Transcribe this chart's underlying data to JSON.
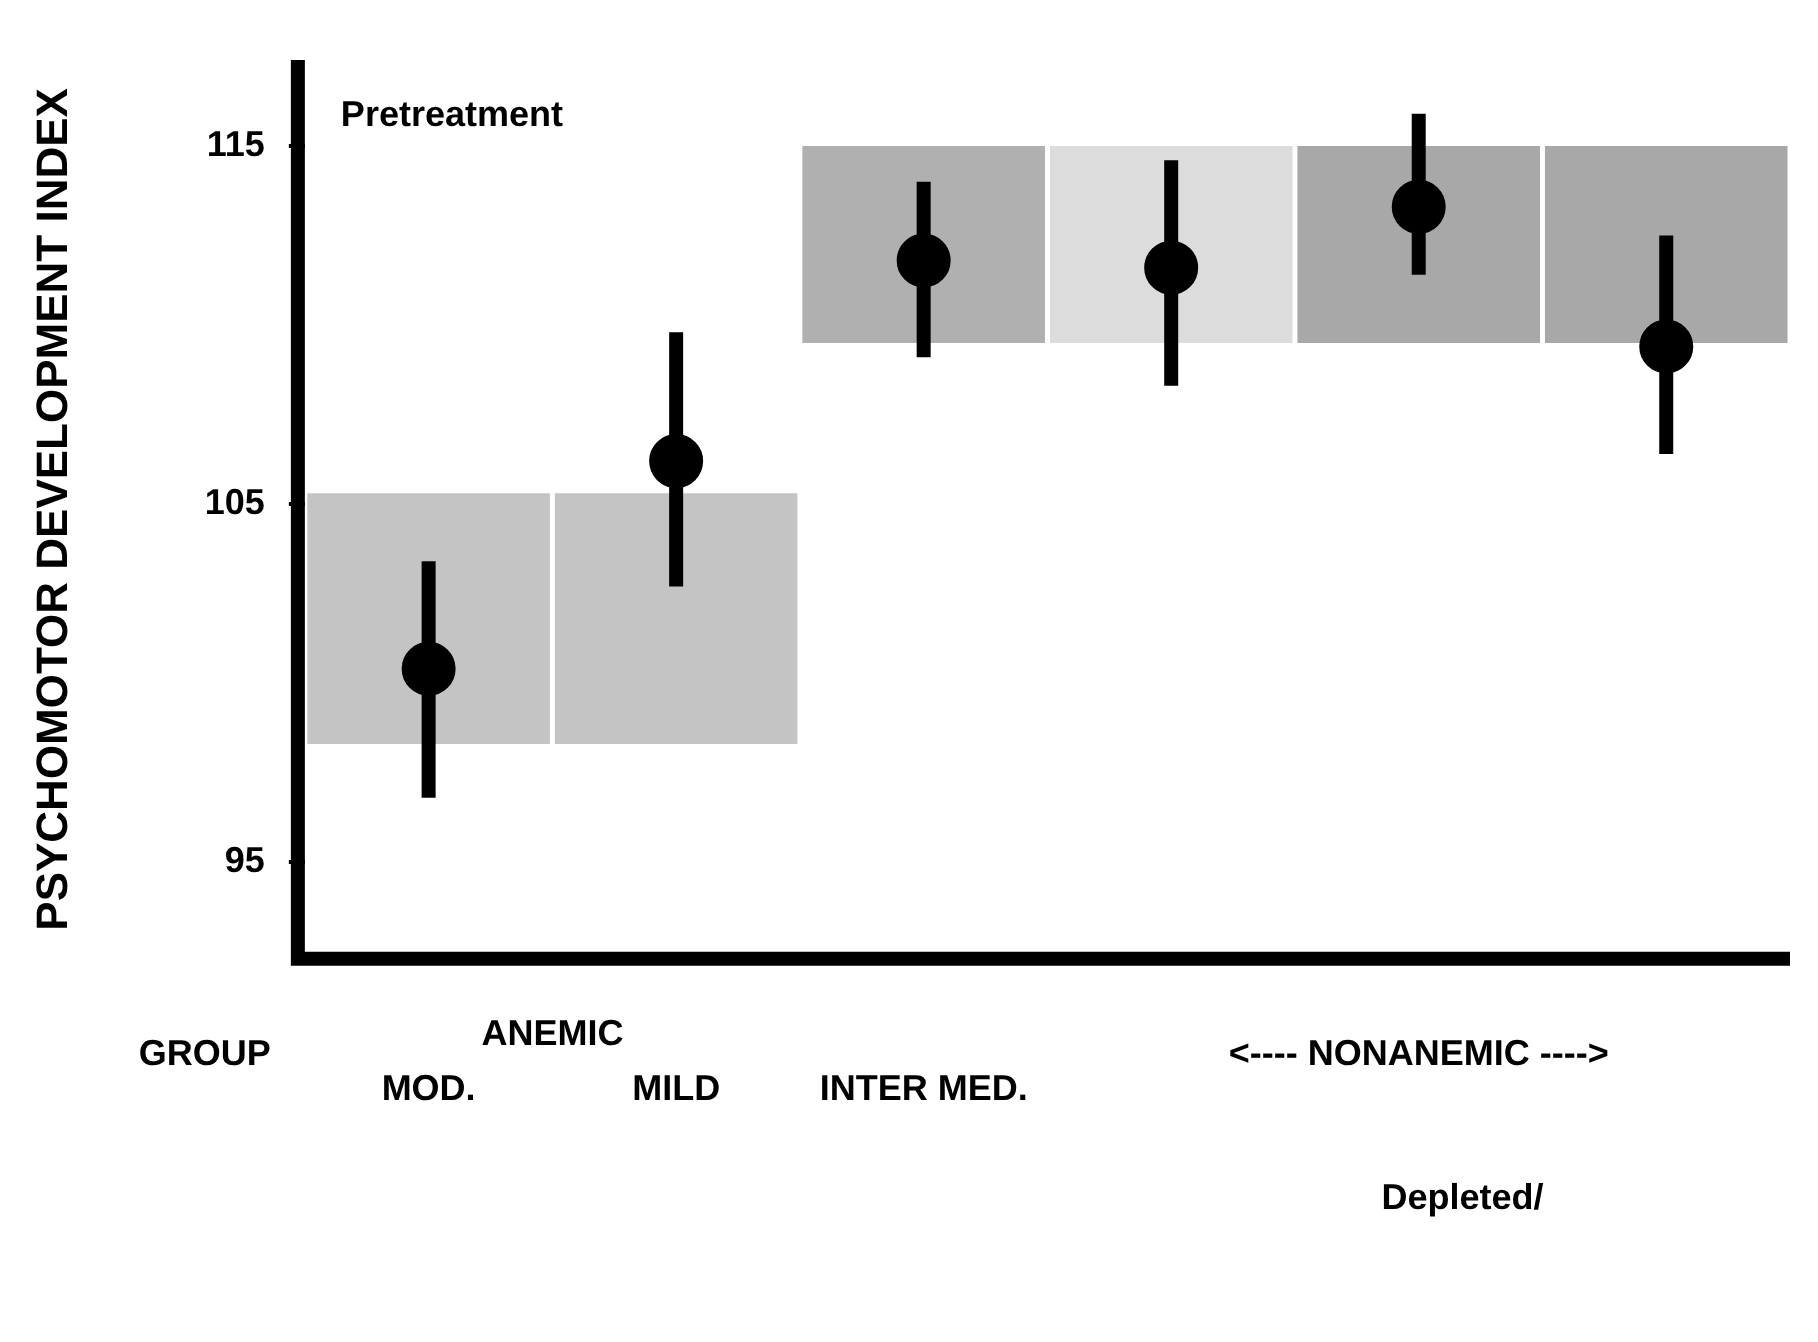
{
  "chart_data": {
    "type": "scatter",
    "ylabel": "PSYCHOMOTOR DEVELOPMENT INDEX",
    "categories": [
      "MOD.",
      "MILD",
      "INTER MED.",
      null,
      null,
      null
    ],
    "series": [
      {
        "type": "bar",
        "colors": [
          "#c4c4c4",
          "#c4c4c4",
          "#b0b0b0",
          "#dcdcdc",
          "#a8a8a8",
          "#a8a8a8"
        ],
        "base": [
          98.3,
          98.3,
          109.5,
          109.5,
          109.5,
          109.5
        ],
        "values": [
          7,
          7,
          5.5,
          5.5,
          5.5,
          5.5
        ]
      },
      {
        "color": "#000000",
        "values": [
          100.4,
          106.2,
          111.8,
          111.6,
          113.3,
          109.4
        ],
        "errors": [
          [
            96.8,
            103.4
          ],
          [
            102.7,
            109.8
          ],
          [
            109.1,
            114.0
          ],
          [
            108.3,
            114.6
          ],
          [
            111.4,
            115.9
          ],
          [
            106.4,
            112.5
          ]
        ]
      }
    ],
    "ylim": [
      92.3,
      117.4
    ],
    "yticks": [
      95,
      105,
      115
    ],
    "grid": false,
    "legend": false,
    "marker": "circle",
    "annotations": [
      "Pretreatment",
      "GROUP",
      "ANEMIC",
      "<---- NONANEMIC ---->",
      "Depleted/"
    ]
  }
}
